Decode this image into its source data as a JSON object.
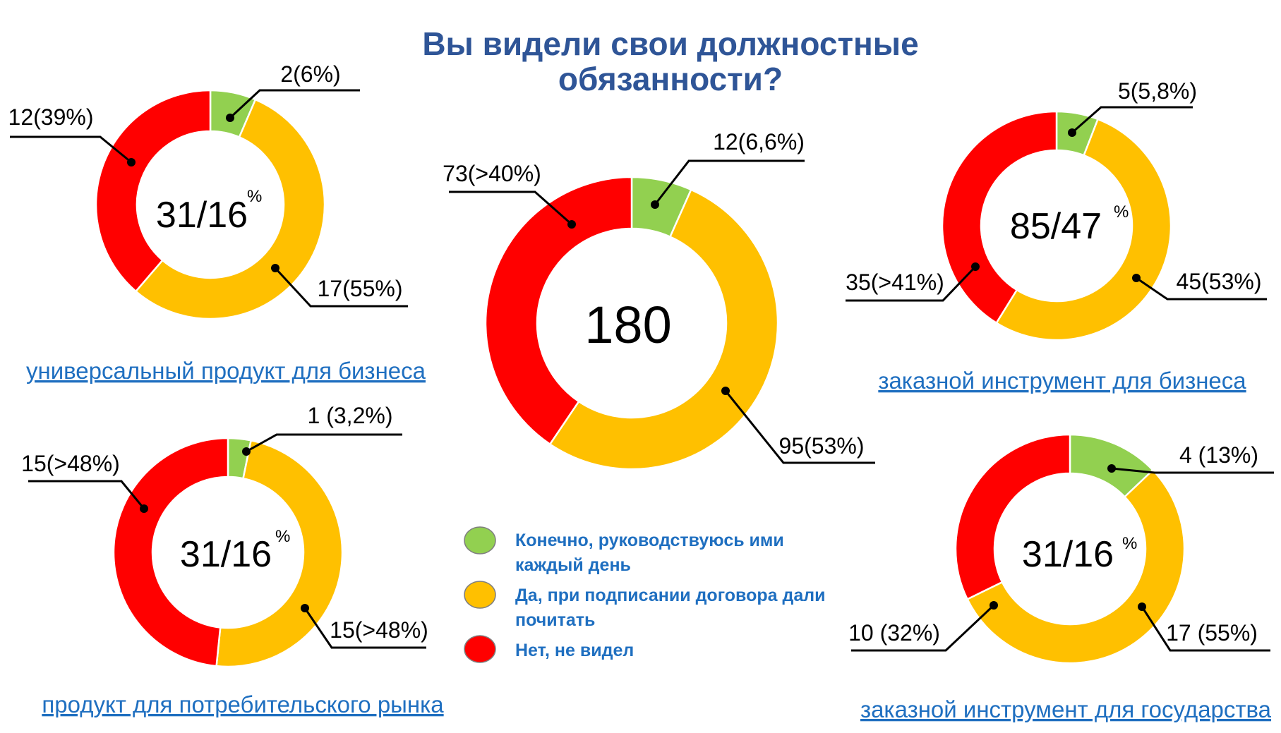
{
  "title": [
    "Вы видели свои должностные",
    "обязанности?"
  ],
  "colors": {
    "green": "#92D050",
    "yellow": "#FFC000",
    "red": "#FF0000",
    "title": "#2F5597",
    "caption": "#1F6FC0"
  },
  "legend": [
    {
      "color": "#92D050",
      "lines": [
        "Конечно, руководствуюсь ими",
        "каждый день"
      ]
    },
    {
      "color": "#FFC000",
      "lines": [
        "Да, при подписании договора дали",
        "почитать"
      ]
    },
    {
      "color": "#FF0000",
      "lines": [
        "Нет, не видел"
      ]
    }
  ],
  "chart_data": [
    {
      "type": "pie",
      "caption": "универсальный продукт для бизнеса",
      "center_label": "31/16",
      "center_suffix": "%",
      "slices": [
        {
          "value": 2,
          "color": "#92D050",
          "label": "2(6%)"
        },
        {
          "value": 17,
          "color": "#FFC000",
          "label": "17(55%)"
        },
        {
          "value": 12,
          "color": "#FF0000",
          "label": "12(39%)"
        }
      ]
    },
    {
      "type": "pie",
      "caption": "",
      "center_label": "180",
      "center_suffix": "",
      "slices": [
        {
          "value": 12,
          "color": "#92D050",
          "label": "12(6,6%)"
        },
        {
          "value": 95,
          "color": "#FFC000",
          "label": "95(53%)"
        },
        {
          "value": 73,
          "color": "#FF0000",
          "label": "73(>40%)"
        }
      ]
    },
    {
      "type": "pie",
      "caption": "заказной инструмент для бизнеса",
      "center_label": "85/47",
      "center_suffix": "%",
      "slices": [
        {
          "value": 5,
          "color": "#92D050",
          "label": "5(5,8%)"
        },
        {
          "value": 45,
          "color": "#FFC000",
          "label": "45(53%)"
        },
        {
          "value": 35,
          "color": "#FF0000",
          "label": "35(>41%)"
        }
      ]
    },
    {
      "type": "pie",
      "caption": "продукт для потребительского рынка",
      "center_label": "31/16",
      "center_suffix": "%",
      "slices": [
        {
          "value": 1,
          "color": "#92D050",
          "label": "1 (3,2%)"
        },
        {
          "value": 15,
          "color": "#FFC000",
          "label": "15(>48%)"
        },
        {
          "value": 15,
          "color": "#FF0000",
          "label": "15(>48%)"
        }
      ]
    },
    {
      "type": "pie",
      "caption": "заказной инструмент для государства",
      "center_label": "31/16",
      "center_suffix": "%",
      "slices": [
        {
          "value": 4,
          "color": "#92D050",
          "label": "4 (13%)"
        },
        {
          "value": 17,
          "color": "#FFC000",
          "label": "17 (55%)"
        },
        {
          "value": 10,
          "color": "#FF0000",
          "label": "10 (32%)"
        }
      ]
    }
  ]
}
